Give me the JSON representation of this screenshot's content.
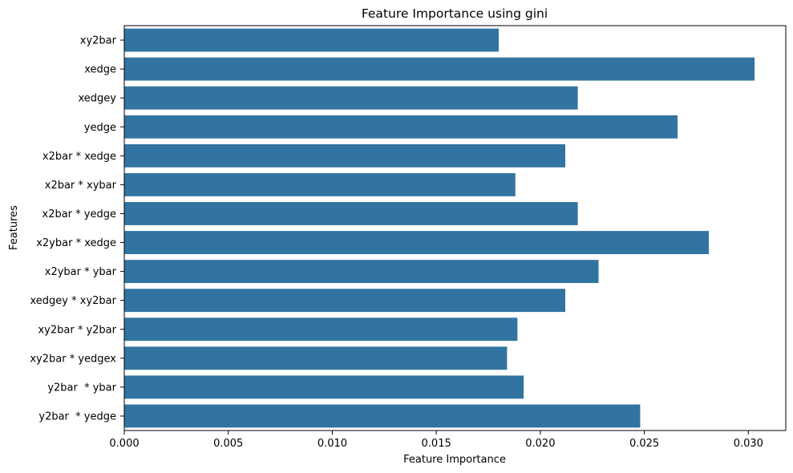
{
  "chart_data": {
    "type": "bar",
    "orientation": "horizontal",
    "title": "Feature Importance using gini",
    "xlabel": "Feature Importance",
    "ylabel": "Features",
    "xlim": [
      0,
      0.0318
    ],
    "x_ticks": [
      "0.000",
      "0.005",
      "0.010",
      "0.015",
      "0.020",
      "0.025",
      "0.030"
    ],
    "x_tick_values": [
      0,
      0.005,
      0.01,
      0.015,
      0.02,
      0.025,
      0.03
    ],
    "grid": false,
    "bar_color": "#3274a1",
    "categories": [
      "xy2bar",
      "xedge",
      "xedgey",
      "yedge",
      "x2bar * xedge",
      "x2bar * xybar",
      "x2bar * yedge",
      "x2ybar * xedge",
      "x2ybar * ybar",
      "xedgey * xy2bar",
      "xy2bar * y2bar",
      "xy2bar * yedgex",
      "y2bar  * ybar",
      "y2bar  * yedge"
    ],
    "values": [
      0.018,
      0.0303,
      0.0218,
      0.0266,
      0.0212,
      0.0188,
      0.0218,
      0.0281,
      0.0228,
      0.0212,
      0.0189,
      0.0184,
      0.0192,
      0.0248
    ]
  }
}
